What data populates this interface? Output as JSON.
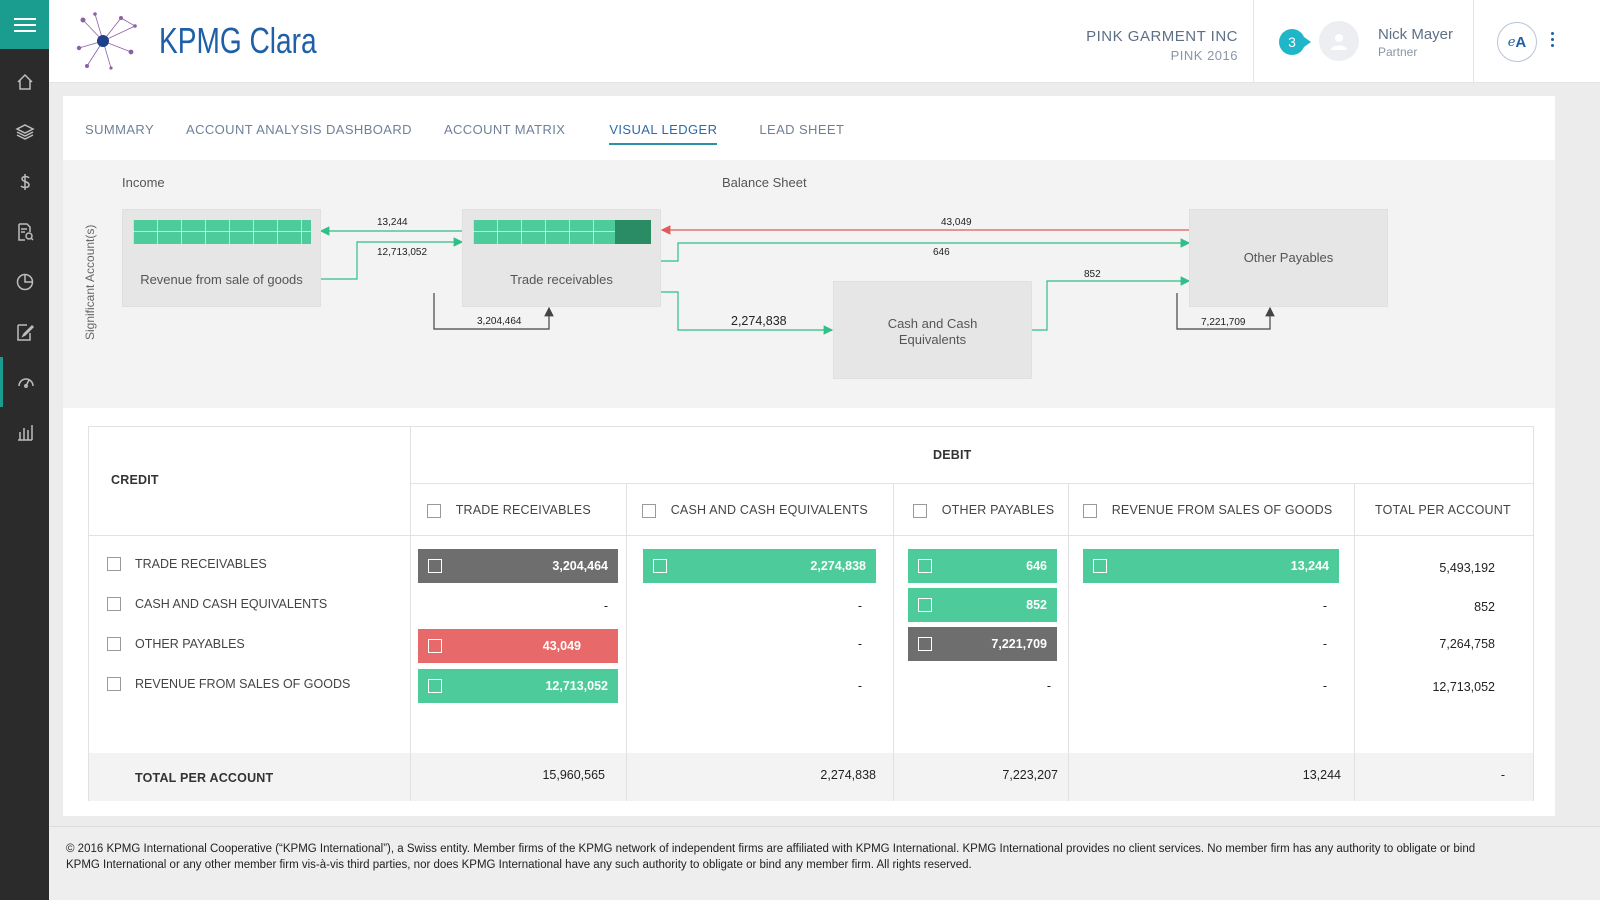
{
  "brand": {
    "name": "KPMG Clara",
    "accent": "#1a9c8e",
    "blue": "#1e5fa8"
  },
  "sidebar": {
    "items": [
      {
        "icon": "home-icon"
      },
      {
        "icon": "layers-icon"
      },
      {
        "icon": "dollar-icon"
      },
      {
        "icon": "document-search-icon"
      },
      {
        "icon": "pie-chart-icon"
      },
      {
        "icon": "edit-document-icon"
      },
      {
        "icon": "dashboard-gauge-icon",
        "active": true
      },
      {
        "icon": "bar-chart-icon"
      }
    ]
  },
  "header": {
    "client_name": "PINK GARMENT INC",
    "client_sub": "PINK 2016",
    "notifications": "3",
    "user_name": "Nick Mayer",
    "user_role": "Partner",
    "ea_italic": "e",
    "ea_bold": "A"
  },
  "tabs": [
    {
      "label": "SUMMARY"
    },
    {
      "label": "ACCOUNT ANALYSIS DASHBOARD"
    },
    {
      "label": "ACCOUNT MATRIX"
    },
    {
      "label": "VISUAL LEDGER",
      "active": true
    },
    {
      "label": "LEAD SHEET"
    }
  ],
  "flow": {
    "income_label": "Income",
    "balance_label": "Balance Sheet",
    "axis_label": "Significant Account(s)",
    "nodes": {
      "revenue": "Revenue from sale of goods",
      "trade": "Trade receivables",
      "cash_line1": "Cash and Cash",
      "cash_line2": "Equivalents",
      "other": "Other Payables"
    },
    "edges": {
      "trade_to_revenue": "13,244",
      "revenue_to_trade": "12,713,052",
      "trade_self": "3,204,464",
      "trade_to_cash": "2,274,838",
      "other_to_trade": "43,049",
      "trade_to_other": "646",
      "cash_to_other": "852",
      "other_self": "7,221,709"
    }
  },
  "table": {
    "credit_header": "CREDIT",
    "debit_header": "DEBIT",
    "columns": [
      "TRADE RECEIVABLES",
      "CASH AND CASH EQUIVALENTS",
      "OTHER PAYABLES",
      "REVENUE FROM SALES OF GOODS",
      "TOTAL PER ACCOUNT"
    ],
    "rows": [
      {
        "label": "TRADE RECEIVABLES",
        "c0": "3,204,464",
        "c1": "2,274,838",
        "c2": "646",
        "c3": "13,244",
        "total": "5,493,192"
      },
      {
        "label": "CASH AND CASH EQUIVALENTS",
        "c0": "-",
        "c1": "-",
        "c2": "852",
        "c3": "-",
        "total": "852"
      },
      {
        "label": "OTHER PAYABLES",
        "c0": "43,049",
        "c1": "-",
        "c2": "7,221,709",
        "c3": "-",
        "total": "7,264,758"
      },
      {
        "label": "REVENUE FROM SALES OF GOODS",
        "c0": "12,713,052",
        "c1": "-",
        "c2": "-",
        "c3": "-",
        "total": "12,713,052"
      }
    ],
    "total_label": "TOTAL PER ACCOUNT",
    "totals": [
      "15,960,565",
      "2,274,838",
      "7,223,207",
      "13,244",
      "-"
    ]
  },
  "legal": {
    "line1": "© 2016 KPMG International Cooperative (“KPMG International”), a Swiss entity. Member firms of the KPMG network of independent firms are affiliated with KPMG International. KPMG International provides no client services. No member firm has any authority to obligate or bind",
    "line2": "KPMG International or any other member firm vis-à-vis third parties, nor does KPMG International have any such authority to obligate or bind any member firm. All rights reserved."
  }
}
